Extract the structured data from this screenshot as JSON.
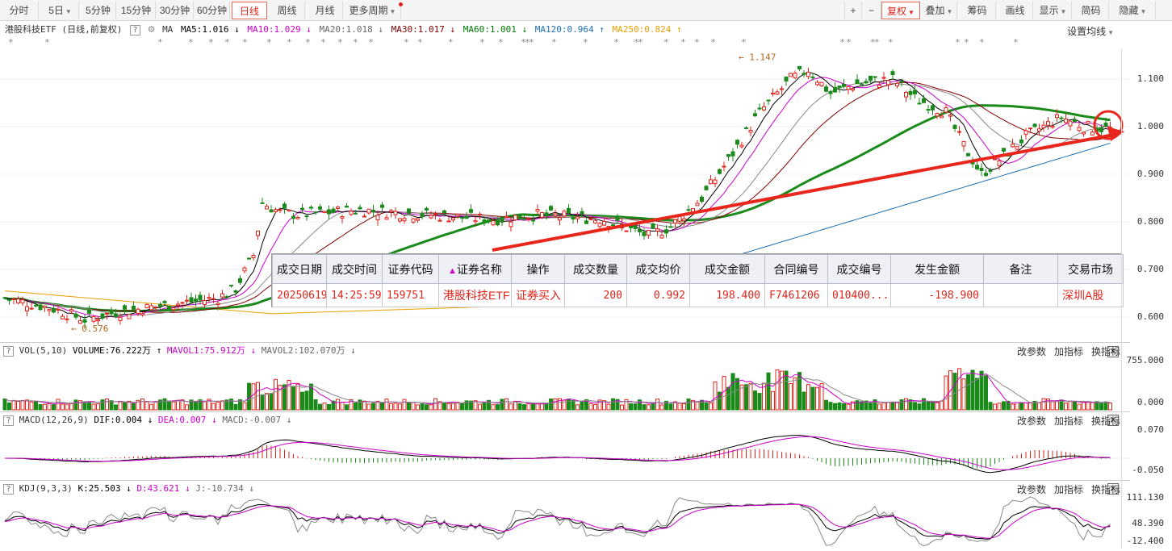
{
  "toolbar": {
    "left": [
      "分时",
      "5日",
      "5分钟",
      "15分钟",
      "30分钟",
      "60分钟",
      "日线",
      "周线",
      "月线",
      "更多周期"
    ],
    "active": "日线",
    "right": [
      "+",
      "−",
      "复权",
      "叠加",
      "筹码",
      "画线",
      "显示",
      "简码",
      "隐藏"
    ]
  },
  "ma_bar": {
    "title": "港股科技ETF (日线,前复权)",
    "ma_label": "MA",
    "items": [
      {
        "text": "MA5:1.016",
        "color": "#000000",
        "arrow": "↓"
      },
      {
        "text": "MA10:1.029",
        "color": "#cc00cc",
        "arrow": "↓"
      },
      {
        "text": "MA20:1.018",
        "color": "#666666",
        "arrow": "↓"
      },
      {
        "text": "MA30:1.017",
        "color": "#800000",
        "arrow": "↓"
      },
      {
        "text": "MA60:1.001",
        "color": "#007700",
        "arrow": "↓"
      },
      {
        "text": "MA120:0.964",
        "color": "#1f6fb2",
        "arrow": "↑"
      },
      {
        "text": "MA250:0.824",
        "color": "#e8a000",
        "arrow": "↑"
      }
    ],
    "setting": "设置均线"
  },
  "main_chart": {
    "y_ticks": [
      "1.100",
      "1.000",
      "0.900",
      "0.800",
      "0.700",
      "0.600"
    ],
    "high_label": "1.147",
    "low_label": "0.576"
  },
  "trade_table": {
    "headers": [
      "成交日期",
      "成交时间",
      "证券代码",
      "证券名称",
      "操作",
      "成交数量",
      "成交均价",
      "成交金额",
      "合同编号",
      "成交编号",
      "发生金额",
      "备注",
      "交易市场"
    ],
    "sort_marker": "▲",
    "row": [
      "20250619",
      "14:25:59",
      "159751",
      "港股科技ETF",
      "证券买入",
      "200",
      "0.992",
      "198.400",
      "F7461206",
      "010400...",
      "-198.900",
      "",
      "深圳A股"
    ]
  },
  "vol_panel": {
    "title": "VOL(5,10)",
    "items": [
      {
        "text": "VOLUME:76.222万",
        "color": "#000000",
        "arrow": "↑"
      },
      {
        "text": "MAVOL1:75.912万",
        "color": "#cc00cc",
        "arrow": "↓"
      },
      {
        "text": "MAVOL2:102.070万",
        "color": "#666666",
        "arrow": "↓"
      }
    ],
    "y_ticks": [
      "755.000",
      "0.000"
    ]
  },
  "macd_panel": {
    "title": "MACD(12,26,9)",
    "items": [
      {
        "text": "DIF:0.004",
        "color": "#000000",
        "arrow": "↓"
      },
      {
        "text": "DEA:0.007",
        "color": "#cc00cc",
        "arrow": "↓"
      },
      {
        "text": "MACD:-0.007",
        "color": "#666666",
        "arrow": "↓"
      }
    ],
    "y_ticks": [
      "0.070",
      "-0.050"
    ]
  },
  "kdj_panel": {
    "title": "KDJ(9,3,3)",
    "items": [
      {
        "text": "K:25.503",
        "color": "#000000",
        "arrow": "↓"
      },
      {
        "text": "D:43.621",
        "color": "#cc00cc",
        "arrow": "↓"
      },
      {
        "text": "J:-10.734",
        "color": "#666666",
        "arrow": "↓"
      }
    ],
    "y_ticks": [
      "111.130",
      "48.390",
      "-12.400"
    ]
  },
  "panel_actions": [
    "改参数",
    "加指标",
    "换指标"
  ],
  "colors": {
    "up": "#e0241c",
    "down": "#1a8a1a",
    "trend": "#e8261c"
  }
}
